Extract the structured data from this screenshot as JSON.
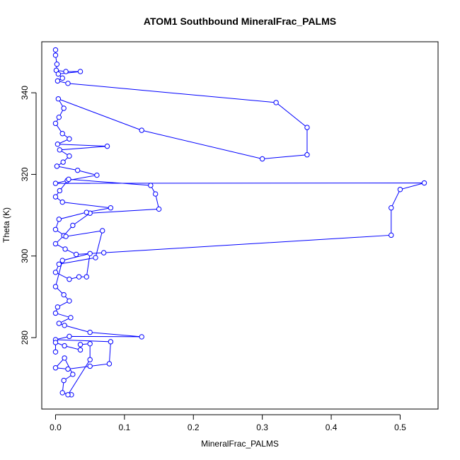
{
  "chart_data": {
    "type": "scatter",
    "title": "ATOM1 Southbound MineralFrac_PALMS",
    "xlabel": "MineralFrac_PALMS",
    "ylabel": "Theta (K)",
    "xlim": [
      -0.02,
      0.555
    ],
    "ylim": [
      262.5,
      352.5
    ],
    "x_ticks": [
      0,
      0.1,
      0.2,
      0.3,
      0.4,
      0.5
    ],
    "x_tick_labels": [
      "0.0",
      "0.1",
      "0.2",
      "0.3",
      "0.4",
      "0.5"
    ],
    "y_ticks": [
      280,
      300,
      320,
      340
    ],
    "y_tick_labels": [
      "280",
      "300",
      "320",
      "340"
    ],
    "grid": false,
    "legend": "none",
    "marker": "open-circle",
    "line_connected": true,
    "color": "#0000ff",
    "series": [
      {
        "points": [
          [
            0.0,
            350.5
          ],
          [
            0.0,
            349.2
          ],
          [
            0.002,
            347.0
          ],
          [
            0.001,
            345.5
          ],
          [
            0.015,
            345.2
          ],
          [
            0.036,
            345.2
          ],
          [
            0.004,
            344.6
          ],
          [
            0.01,
            343.6
          ],
          [
            0.003,
            342.9
          ],
          [
            0.018,
            342.3
          ],
          [
            0.32,
            337.6
          ],
          [
            0.365,
            331.5
          ],
          [
            0.365,
            324.8
          ],
          [
            0.3,
            323.8
          ],
          [
            0.125,
            330.8
          ],
          [
            0.004,
            338.5
          ],
          [
            0.012,
            336.2
          ],
          [
            0.005,
            334.0
          ],
          [
            0.0,
            332.5
          ],
          [
            0.01,
            330.0
          ],
          [
            0.02,
            328.7
          ],
          [
            0.003,
            327.4
          ],
          [
            0.075,
            326.9
          ],
          [
            0.006,
            326.0
          ],
          [
            0.02,
            324.5
          ],
          [
            0.011,
            323.0
          ],
          [
            0.002,
            322.0
          ],
          [
            0.032,
            321.0
          ],
          [
            0.06,
            319.8
          ],
          [
            0.017,
            318.5
          ],
          [
            0.0,
            317.8
          ],
          [
            0.535,
            317.9
          ],
          [
            0.5,
            316.3
          ],
          [
            0.487,
            311.8
          ],
          [
            0.487,
            305.1
          ],
          [
            0.07,
            300.8
          ],
          [
            0.03,
            300.4
          ],
          [
            0.014,
            301.7
          ],
          [
            0.0,
            303.0
          ],
          [
            0.012,
            305.0
          ],
          [
            0.025,
            307.5
          ],
          [
            0.05,
            310.5
          ],
          [
            0.15,
            311.5
          ],
          [
            0.145,
            315.2
          ],
          [
            0.138,
            317.3
          ],
          [
            0.019,
            318.8
          ],
          [
            0.006,
            316.0
          ],
          [
            0.0,
            314.5
          ],
          [
            0.01,
            313.2
          ],
          [
            0.08,
            311.8
          ],
          [
            0.045,
            310.7
          ],
          [
            0.005,
            309.0
          ],
          [
            0.0,
            306.5
          ],
          [
            0.015,
            304.8
          ],
          [
            0.068,
            306.2
          ],
          [
            0.058,
            299.6
          ],
          [
            0.005,
            298.0
          ],
          [
            0.0,
            296.0
          ],
          [
            0.02,
            294.3
          ],
          [
            0.034,
            294.9
          ],
          [
            0.045,
            294.9
          ],
          [
            0.05,
            300.6
          ],
          [
            0.01,
            298.9
          ],
          [
            0.0,
            292.5
          ],
          [
            0.012,
            290.5
          ],
          [
            0.02,
            289.0
          ],
          [
            0.003,
            287.5
          ],
          [
            0.0,
            286.0
          ],
          [
            0.022,
            284.9
          ],
          [
            0.005,
            283.5
          ],
          [
            0.013,
            283.0
          ],
          [
            0.05,
            281.3
          ],
          [
            0.125,
            280.2
          ],
          [
            0.02,
            280.3
          ],
          [
            0.0,
            279.5
          ],
          [
            0.08,
            279.0
          ],
          [
            0.078,
            273.6
          ],
          [
            0.05,
            273.0
          ],
          [
            0.018,
            272.3
          ],
          [
            0.0,
            272.6
          ],
          [
            0.013,
            275.0
          ],
          [
            0.025,
            271.0
          ],
          [
            0.012,
            269.5
          ],
          [
            0.01,
            266.5
          ],
          [
            0.023,
            266.0
          ],
          [
            0.018,
            266.0
          ],
          [
            0.05,
            274.6
          ],
          [
            0.05,
            278.5
          ],
          [
            0.036,
            278.3
          ],
          [
            0.036,
            277.0
          ],
          [
            0.013,
            278.0
          ],
          [
            0.0,
            278.8
          ],
          [
            0.0,
            276.5
          ]
        ]
      }
    ]
  }
}
